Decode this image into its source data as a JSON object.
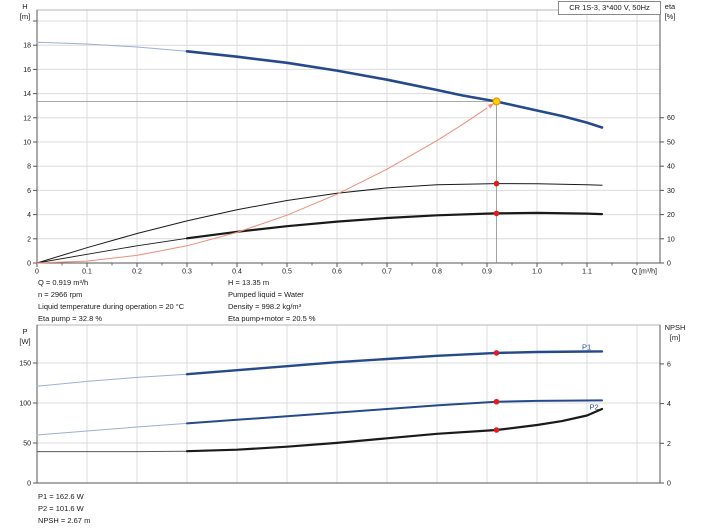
{
  "title_box": {
    "label": "CR 1S-3, 3*400 V, 50Hz"
  },
  "corner_labels": {
    "h": [
      "H",
      "[m]"
    ],
    "eta": [
      "eta",
      "[%]"
    ],
    "p": [
      "P",
      "[W]"
    ],
    "npsh": [
      "NPSH",
      "[m]"
    ]
  },
  "info_panel": {
    "left": [
      "Q = 0.919 m³/h",
      "n = 2966 rpm",
      "Liquid temperature during operation = 20 °C",
      "Eta pump = 32.8 %"
    ],
    "right": [
      "H = 13.35 m",
      "Pumped liquid = Water",
      "Density = 998.2 kg/m³",
      "Eta pump+motor = 20.5 %"
    ]
  },
  "result_panel": [
    "P1 = 162.6 W",
    "P2 = 101.6 W",
    "NPSH = 2.67 m"
  ],
  "colors": {
    "curve_main": "#26498c",
    "curve_thin_blue": "#9bb0d2",
    "curve_black": "#1a1a1a",
    "system_curve": "#ec8d7b",
    "operating_dot": "#e11c1c",
    "duty_fill": "#ffd400",
    "duty_ring": "#f09700",
    "grid": "#dcdcdc",
    "frame": "#b4b4b4",
    "axis": "#555555",
    "crosshair": "#8c8c8c",
    "text": "#1a1a1a"
  },
  "chart_data": [
    {
      "type": "line",
      "x_label": "Q [m³/h]",
      "x_range": [
        0,
        1.246
      ],
      "x_ticks": {
        "values": [
          0,
          0.1,
          0.2,
          0.3,
          0.4,
          0.5,
          0.6,
          0.7,
          0.8,
          0.9,
          1.0,
          1.1
        ],
        "labels": [
          "0",
          "0.1",
          "0.2",
          "0.3",
          "0.4",
          "0.5",
          "0.6",
          "0.7",
          "0.8",
          "0.9",
          "1.0",
          "1.1"
        ]
      },
      "x_minor_step": 0.05,
      "x_grid": [
        0.1,
        0.2,
        0.3,
        0.4,
        0.5,
        0.6,
        0.7,
        0.8,
        0.9,
        1.0,
        1.1,
        1.2
      ],
      "y_left": {
        "label": "H [m]",
        "range": [
          0,
          20.91
        ],
        "ticks": [
          0,
          2,
          4,
          6,
          8,
          10,
          12,
          14,
          16,
          18
        ],
        "unlabeled_ticks": [
          20
        ],
        "grid": [
          2,
          4,
          6,
          8,
          10,
          12,
          14,
          16,
          18,
          20
        ]
      },
      "y_right": {
        "label": "eta [%]",
        "range": [
          0,
          104.5
        ],
        "ticks": [
          0,
          10,
          20,
          30,
          40,
          50,
          60
        ],
        "unlabeled_ticks": [],
        "grid": []
      },
      "series": [
        {
          "name": "head-curve-thin",
          "axis": "left",
          "color": "#9bb0d2",
          "width": 1,
          "points": [
            [
              0,
              18.25
            ],
            [
              0.1,
              18.1
            ],
            [
              0.2,
              17.85
            ],
            [
              0.3,
              17.5
            ]
          ]
        },
        {
          "name": "head-curve",
          "axis": "left",
          "color": "#26498c",
          "width": 2.6,
          "points": [
            [
              0.3,
              17.5
            ],
            [
              0.4,
              17.05
            ],
            [
              0.5,
              16.55
            ],
            [
              0.6,
              15.9
            ],
            [
              0.7,
              15.15
            ],
            [
              0.8,
              14.3
            ],
            [
              0.85,
              13.85
            ],
            [
              0.919,
              13.35
            ],
            [
              1.0,
              12.6
            ],
            [
              1.05,
              12.15
            ],
            [
              1.1,
              11.6
            ],
            [
              1.13,
              11.2
            ]
          ]
        },
        {
          "name": "eta-pump-curve",
          "axis": "right",
          "color": "#1a1a1a",
          "width": 1,
          "points": [
            [
              0,
              0
            ],
            [
              0.1,
              6.3
            ],
            [
              0.2,
              12.2
            ],
            [
              0.3,
              17.4
            ],
            [
              0.4,
              22
            ],
            [
              0.5,
              25.8
            ],
            [
              0.6,
              28.8
            ],
            [
              0.7,
              31
            ],
            [
              0.8,
              32.3
            ],
            [
              0.919,
              32.8
            ],
            [
              1.0,
              32.7
            ],
            [
              1.1,
              32.3
            ],
            [
              1.13,
              32.1
            ]
          ]
        },
        {
          "name": "eta-pump-motor-curve-thin",
          "axis": "right",
          "color": "#1a1a1a",
          "width": 0.9,
          "points": [
            [
              0,
              0
            ],
            [
              0.1,
              3.6
            ],
            [
              0.2,
              7.1
            ],
            [
              0.3,
              10.2
            ]
          ]
        },
        {
          "name": "eta-pump-motor-curve",
          "axis": "right",
          "color": "#1a1a1a",
          "width": 2.2,
          "points": [
            [
              0.3,
              10.2
            ],
            [
              0.4,
              12.9
            ],
            [
              0.5,
              15.2
            ],
            [
              0.6,
              17.1
            ],
            [
              0.7,
              18.6
            ],
            [
              0.8,
              19.7
            ],
            [
              0.9,
              20.4
            ],
            [
              0.919,
              20.5
            ],
            [
              1.0,
              20.7
            ],
            [
              1.1,
              20.4
            ],
            [
              1.13,
              20.2
            ]
          ]
        },
        {
          "name": "system-curve",
          "axis": "left",
          "color": "#ec8d7b",
          "width": 1,
          "points": [
            [
              0,
              0
            ],
            [
              0.1,
              0.16
            ],
            [
              0.2,
              0.63
            ],
            [
              0.3,
              1.42
            ],
            [
              0.4,
              2.53
            ],
            [
              0.5,
              3.95
            ],
            [
              0.6,
              5.69
            ],
            [
              0.7,
              7.75
            ],
            [
              0.8,
              10.12
            ],
            [
              0.85,
              11.42
            ],
            [
              0.9,
              12.8
            ]
          ],
          "arrow_to": [
            0.919,
            13.35
          ]
        }
      ],
      "crosshair": {
        "q": 0.919,
        "value": 13.35,
        "axis": "left"
      },
      "markers": [
        {
          "name": "duty-point",
          "q": 0.919,
          "value": 13.35,
          "axis": "left",
          "style": "duty"
        },
        {
          "name": "eta-pump-point",
          "q": 0.919,
          "value": 32.8,
          "axis": "right",
          "style": "red"
        },
        {
          "name": "eta-pump-motor-point",
          "q": 0.919,
          "value": 20.5,
          "axis": "right",
          "style": "red"
        }
      ],
      "curve_labels": []
    },
    {
      "type": "line",
      "x_label": "",
      "x_range": [
        0,
        1.246
      ],
      "x_ticks": {
        "values": [],
        "labels": []
      },
      "x_minor_step": 0,
      "x_grid": [
        0.1,
        0.2,
        0.3,
        0.4,
        0.5,
        0.6,
        0.7,
        0.8,
        0.9,
        1.0,
        1.1,
        1.2
      ],
      "y_left": {
        "label": "P [W]",
        "range": [
          0,
          197.5
        ],
        "ticks": [
          0,
          50,
          100,
          150
        ],
        "unlabeled_ticks": [],
        "grid": [
          50,
          100,
          150
        ]
      },
      "y_right": {
        "label": "NPSH [m]",
        "range": [
          0,
          7.96
        ],
        "ticks": [
          0,
          2,
          4,
          6
        ],
        "unlabeled_ticks": [],
        "grid": []
      },
      "series": [
        {
          "name": "p1-curve-thin",
          "axis": "left",
          "color": "#9bb0d2",
          "width": 1,
          "points": [
            [
              0,
              121
            ],
            [
              0.1,
              127
            ],
            [
              0.2,
              132
            ],
            [
              0.3,
              136
            ]
          ]
        },
        {
          "name": "p1-curve",
          "axis": "left",
          "color": "#26498c",
          "width": 2.4,
          "points": [
            [
              0.3,
              136
            ],
            [
              0.4,
              141
            ],
            [
              0.5,
              146
            ],
            [
              0.6,
              151
            ],
            [
              0.7,
              155
            ],
            [
              0.8,
              159
            ],
            [
              0.919,
              162.6
            ],
            [
              1.0,
              163.8
            ],
            [
              1.1,
              164.4
            ],
            [
              1.13,
              164.5
            ]
          ]
        },
        {
          "name": "p2-curve-thin",
          "axis": "left",
          "color": "#9bb0d2",
          "width": 1,
          "points": [
            [
              0,
              60
            ],
            [
              0.1,
              65
            ],
            [
              0.2,
              70
            ],
            [
              0.3,
              74.5
            ]
          ]
        },
        {
          "name": "p2-curve",
          "axis": "left",
          "color": "#26498c",
          "width": 2,
          "points": [
            [
              0.3,
              74.5
            ],
            [
              0.4,
              79
            ],
            [
              0.5,
              83.5
            ],
            [
              0.6,
              88
            ],
            [
              0.7,
              92.5
            ],
            [
              0.8,
              97
            ],
            [
              0.919,
              101.6
            ],
            [
              1.0,
              102.6
            ],
            [
              1.1,
              103.1
            ],
            [
              1.13,
              103.3
            ]
          ]
        },
        {
          "name": "npsh-curve-thin",
          "axis": "right",
          "color": "#5a5a5a",
          "width": 1,
          "points": [
            [
              0,
              1.58
            ],
            [
              0.1,
              1.58
            ],
            [
              0.2,
              1.58
            ],
            [
              0.3,
              1.6
            ]
          ]
        },
        {
          "name": "npsh-curve",
          "axis": "right",
          "color": "#1a1a1a",
          "width": 2.2,
          "points": [
            [
              0.3,
              1.6
            ],
            [
              0.4,
              1.68
            ],
            [
              0.5,
              1.83
            ],
            [
              0.6,
              2.02
            ],
            [
              0.7,
              2.25
            ],
            [
              0.8,
              2.48
            ],
            [
              0.919,
              2.67
            ],
            [
              1.0,
              2.92
            ],
            [
              1.05,
              3.12
            ],
            [
              1.1,
              3.4
            ],
            [
              1.13,
              3.73
            ]
          ]
        }
      ],
      "crosshair": null,
      "markers": [
        {
          "name": "p1-point",
          "q": 0.919,
          "value": 162.6,
          "axis": "left",
          "style": "red"
        },
        {
          "name": "p2-point",
          "q": 0.919,
          "value": 101.6,
          "axis": "left",
          "style": "red"
        },
        {
          "name": "npsh-point",
          "q": 0.919,
          "value": 2.67,
          "axis": "right",
          "style": "red"
        }
      ],
      "curve_labels": [
        {
          "text": "P1",
          "q": 1.09,
          "value": 170,
          "axis": "left",
          "color": "#26498c"
        },
        {
          "text": "P2",
          "q": 1.105,
          "value": 95,
          "axis": "left",
          "color": "#26498c"
        }
      ]
    }
  ]
}
